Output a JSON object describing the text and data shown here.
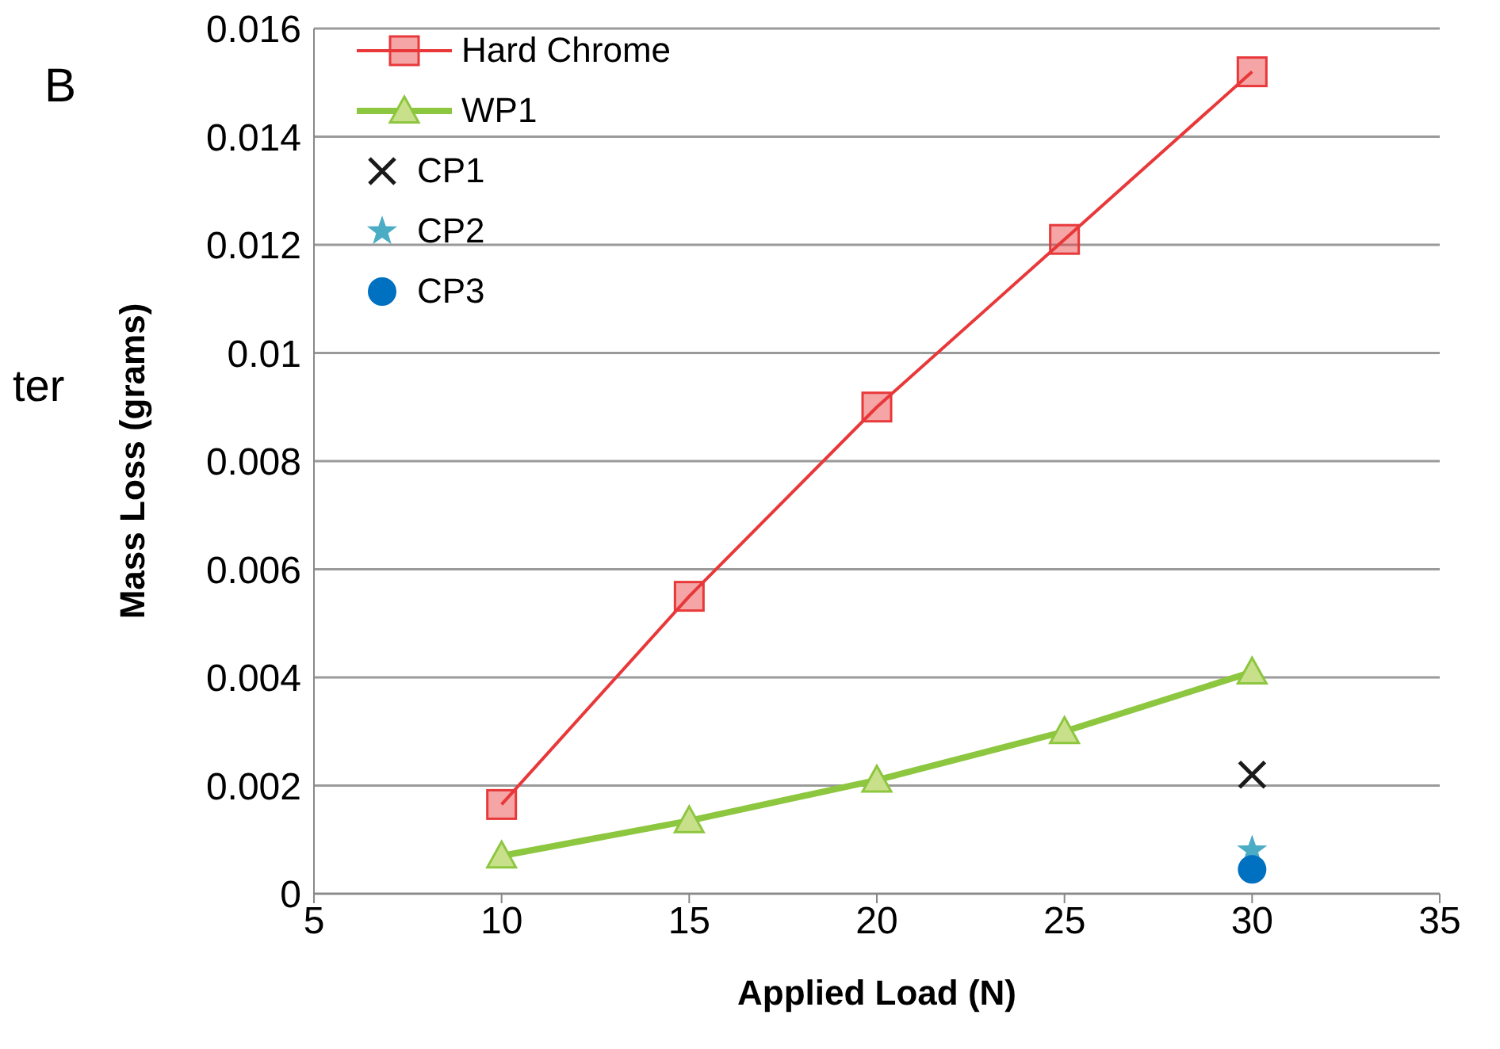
{
  "chart_data": {
    "type": "line",
    "xlabel": "Applied Load (N)",
    "ylabel": "Mass Loss (grams)",
    "x": [
      10,
      15,
      20,
      25,
      30
    ],
    "series": [
      {
        "name": "Hard Chrome",
        "color": "#e8383a",
        "values": [
          0.00165,
          0.0055,
          0.009,
          0.0121,
          0.0152
        ],
        "marker": "square"
      },
      {
        "name": "WP1",
        "color": "#8dc63f",
        "values": [
          0.0007,
          0.00135,
          0.0021,
          0.003,
          0.0041
        ],
        "marker": "triangle"
      },
      {
        "name": "CP1",
        "type": "scatter",
        "color": "#1a1a1a",
        "values": [
          null,
          null,
          null,
          null,
          0.0022
        ],
        "marker": "cross"
      },
      {
        "name": "CP2",
        "type": "scatter",
        "color": "#4bacc6",
        "values": [
          null,
          null,
          null,
          null,
          0.0008
        ],
        "marker": "star"
      },
      {
        "name": "CP3",
        "type": "scatter",
        "color": "#0070c0",
        "values": [
          null,
          null,
          null,
          null,
          0.00045
        ],
        "marker": "circle"
      }
    ],
    "xlim": [
      5,
      35
    ],
    "xticks": [
      5,
      10,
      15,
      20,
      25,
      30,
      35
    ],
    "ylim": [
      0,
      0.016
    ],
    "yticks": [
      0,
      0.002,
      0.004,
      0.006,
      0.008,
      0.01,
      0.012,
      0.014,
      0.016
    ],
    "grid": "y",
    "legend": "top left",
    "annotations": [
      "B",
      "ter"
    ]
  }
}
